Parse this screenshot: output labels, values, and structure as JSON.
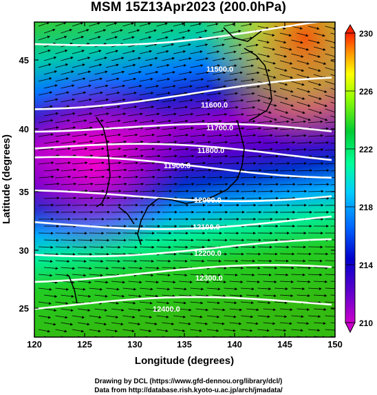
{
  "title": "MSM 15Z13Apr2023 (200.0hPa)",
  "x_axis": {
    "label": "Longitude (degrees)",
    "ticks": [
      "120",
      "125",
      "130",
      "135",
      "140",
      "145",
      "150"
    ]
  },
  "y_axis": {
    "label": "Latitude  (degrees)",
    "ticks": [
      "25",
      "30",
      "35",
      "40",
      "45"
    ]
  },
  "colorbar": {
    "ticks": [
      "210",
      "214",
      "218",
      "222",
      "226",
      "230"
    ],
    "colors": [
      "#cc00cc",
      "#ff33cc",
      "#6600cc",
      "#0000cc",
      "#0066ff",
      "#00ccff",
      "#00ff99",
      "#00cc33",
      "#33cc00",
      "#99ff00",
      "#ffff00",
      "#ffcc00",
      "#ff6600",
      "#ff0000"
    ]
  },
  "contour_labels": [
    "11500.0",
    "11600.0",
    "11700.0",
    "11800.0",
    "11900.0",
    "12000.0",
    "12100.0",
    "12200.0",
    "12300.0",
    "12400.0"
  ],
  "credits": {
    "line1": "Drawing by DCL (https://www.gfd-dennou.org/library/dcl/)",
    "line2": "Data from http://database.rish.kyoto-u.ac.jp/arch/jmadata/"
  }
}
